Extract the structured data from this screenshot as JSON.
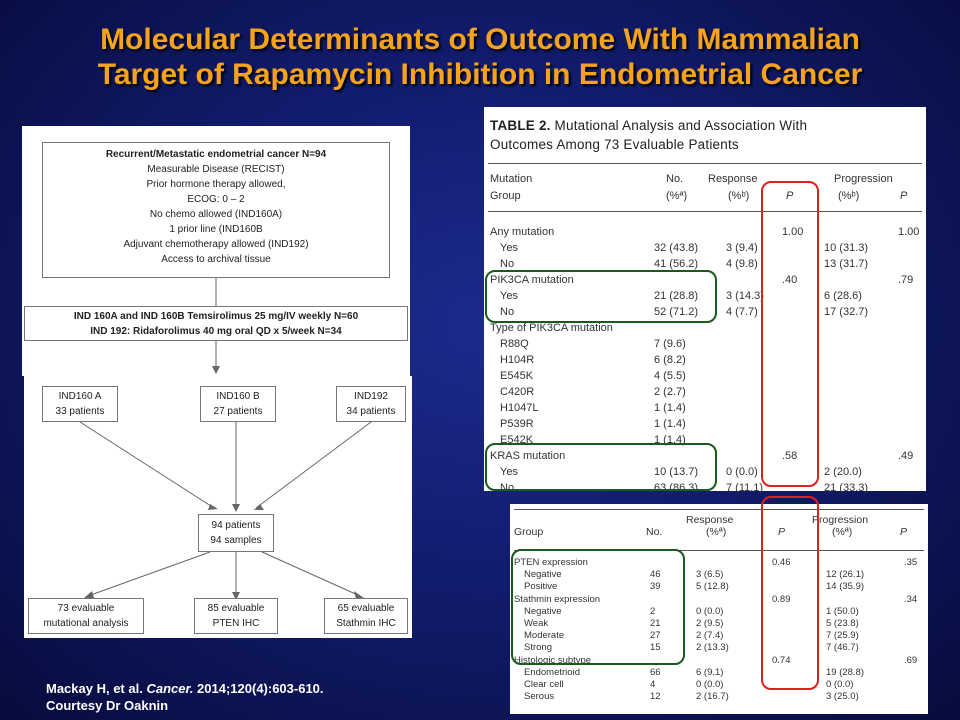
{
  "title": {
    "line1": "Molecular Determinants of Outcome With Mammalian",
    "line2": "Target of Rapamycin Inhibition  in Endometrial Cancer"
  },
  "flowchart": {
    "eligibility": [
      "Recurrent/Metastatic endometrial cancer N=94",
      "Measurable Disease (RECIST)",
      "Prior hormone therapy allowed,",
      "ECOG: 0 – 2",
      "No chemo allowed (IND160A)",
      "1 prior line (IND160B",
      "Adjuvant chemotherapy allowed (IND192)",
      "Access to archival tissue"
    ],
    "treatment_line1": "IND 160A and IND 160B Temsirolimus 25 mg/IV weekly N=60",
    "treatment_line2": "IND 192: Ridaforolimus 40 mg oral QD x 5/week N=34",
    "arms": [
      {
        "name": "IND160 A",
        "patients": "33 patients"
      },
      {
        "name": "IND160 B",
        "patients": "27 patients"
      },
      {
        "name": "IND192",
        "patients": "34 patients"
      }
    ],
    "pooled": {
      "line1": "94 patients",
      "line2": "94 samples"
    },
    "outcomes": [
      {
        "line1": "73 evaluable",
        "line2": "mutational analysis"
      },
      {
        "line1": "85 evaluable",
        "line2": "PTEN IHC"
      },
      {
        "line1": "65 evaluable",
        "line2": "Stathmin IHC"
      }
    ]
  },
  "citation": {
    "authors": "Mackay H, et al. ",
    "journal": "Cancer.",
    "details": " 2014;120(4):603-610.",
    "courtesy": "Courtesy Dr Oaknin"
  },
  "table2": {
    "label": "TABLE 2.",
    "title_rest": " Mutational Analysis and Association With",
    "title_line2": "Outcomes Among 73 Evaluable Patients",
    "headers": {
      "col1_line1": "Mutation",
      "col1_line2": "Group",
      "no_line1": "No.",
      "no_line2": "(%ª)",
      "resp_line1": "Response",
      "resp_line2": "(%ᵇ)",
      "p1": "P",
      "prog_line1": "Progression",
      "prog_line2": "(%ᵇ)",
      "p2": "P"
    },
    "rows": [
      {
        "label": "Any mutation",
        "no": "",
        "resp": "",
        "p1": "1.00",
        "prog": "",
        "p2": "1.00"
      },
      {
        "label": "Yes",
        "no": "32 (43.8)",
        "resp": "3 (9.4)",
        "p1": "",
        "prog": "10 (31.3)",
        "p2": ""
      },
      {
        "label": "No",
        "no": "41 (56.2)",
        "resp": "4 (9.8)",
        "p1": "",
        "prog": "13 (31.7)",
        "p2": ""
      },
      {
        "label": "PIK3CA mutation",
        "no": "",
        "resp": "",
        "p1": ".40",
        "prog": "",
        "p2": ".79"
      },
      {
        "label": "Yes",
        "no": "21 (28.8)",
        "resp": "3 (14.3)",
        "p1": "",
        "prog": "6 (28.6)",
        "p2": ""
      },
      {
        "label": "No",
        "no": "52 (71.2)",
        "resp": "4 (7.7)",
        "p1": "",
        "prog": "17 (32.7)",
        "p2": ""
      },
      {
        "label": "Type of PIK3CA mutation",
        "no": "",
        "resp": "",
        "p1": "",
        "prog": "",
        "p2": ""
      },
      {
        "label": "R88Q",
        "no": "7 (9.6)",
        "resp": "",
        "p1": "",
        "prog": "",
        "p2": ""
      },
      {
        "label": "H104R",
        "no": "6 (8.2)",
        "resp": "",
        "p1": "",
        "prog": "",
        "p2": ""
      },
      {
        "label": "E545K",
        "no": "4 (5.5)",
        "resp": "",
        "p1": "",
        "prog": "",
        "p2": ""
      },
      {
        "label": "C420R",
        "no": "2 (2.7)",
        "resp": "",
        "p1": "",
        "prog": "",
        "p2": ""
      },
      {
        "label": "H1047L",
        "no": "1 (1.4)",
        "resp": "",
        "p1": "",
        "prog": "",
        "p2": ""
      },
      {
        "label": "P539R",
        "no": "1 (1.4)",
        "resp": "",
        "p1": "",
        "prog": "",
        "p2": ""
      },
      {
        "label": "E542K",
        "no": "1 (1.4)",
        "resp": "",
        "p1": "",
        "prog": "",
        "p2": ""
      },
      {
        "label": "KRAS mutation",
        "no": "",
        "resp": "",
        "p1": ".58",
        "prog": "",
        "p2": ".49"
      },
      {
        "label": "Yes",
        "no": "10 (13.7)",
        "resp": "0 (0.0)",
        "p1": "",
        "prog": "2 (20.0)",
        "p2": ""
      },
      {
        "label": "No",
        "no": "63 (86.3)",
        "resp": "7 (11.1)",
        "p1": "",
        "prog": "21 (33.3)",
        "p2": ""
      }
    ]
  },
  "table3": {
    "headers": {
      "group": "Group",
      "no": "No.",
      "resp_line1": "Response",
      "resp_line2": "(%ª)",
      "p1": "P",
      "prog_line1": "Progression",
      "prog_line2": "(%ª)",
      "p2": "P"
    },
    "rows": [
      {
        "label": "PTEN expression",
        "no": "",
        "resp": "",
        "p1": "0.46",
        "prog": "",
        "p2": ".35"
      },
      {
        "label": "Negative",
        "no": "46",
        "resp": "3 (6.5)",
        "p1": "",
        "prog": "12 (26.1)",
        "p2": ""
      },
      {
        "label": "Positive",
        "no": "39",
        "resp": "5 (12.8)",
        "p1": "",
        "prog": "14 (35.9)",
        "p2": ""
      },
      {
        "label": "Stathmin expression",
        "no": "",
        "resp": "",
        "p1": "0.89",
        "prog": "",
        "p2": ".34"
      },
      {
        "label": "Negative",
        "no": "2",
        "resp": "0 (0.0)",
        "p1": "",
        "prog": "1 (50.0)",
        "p2": ""
      },
      {
        "label": "Weak",
        "no": "21",
        "resp": "2 (9.5)",
        "p1": "",
        "prog": "5 (23.8)",
        "p2": ""
      },
      {
        "label": "Moderate",
        "no": "27",
        "resp": "2 (7.4)",
        "p1": "",
        "prog": "7 (25.9)",
        "p2": ""
      },
      {
        "label": "Strong",
        "no": "15",
        "resp": "2 (13.3)",
        "p1": "",
        "prog": "7 (46.7)",
        "p2": ""
      },
      {
        "label": "Histologic subtype",
        "no": "",
        "resp": "",
        "p1": "0.74",
        "prog": "",
        "p2": ".69"
      },
      {
        "label": "Endometrioid",
        "no": "66",
        "resp": "6 (9.1)",
        "p1": "",
        "prog": "19 (28.8)",
        "p2": ""
      },
      {
        "label": "Clear cell",
        "no": "4",
        "resp": "0 (0.0)",
        "p1": "",
        "prog": "0 (0.0)",
        "p2": ""
      },
      {
        "label": "Serous",
        "no": "12",
        "resp": "2 (16.7)",
        "p1": "",
        "prog": "3 (25.0)",
        "p2": ""
      }
    ]
  },
  "colors": {
    "title": "#f5a21d",
    "highlight_red": "#e02020",
    "highlight_green": "#1a5a1a"
  }
}
